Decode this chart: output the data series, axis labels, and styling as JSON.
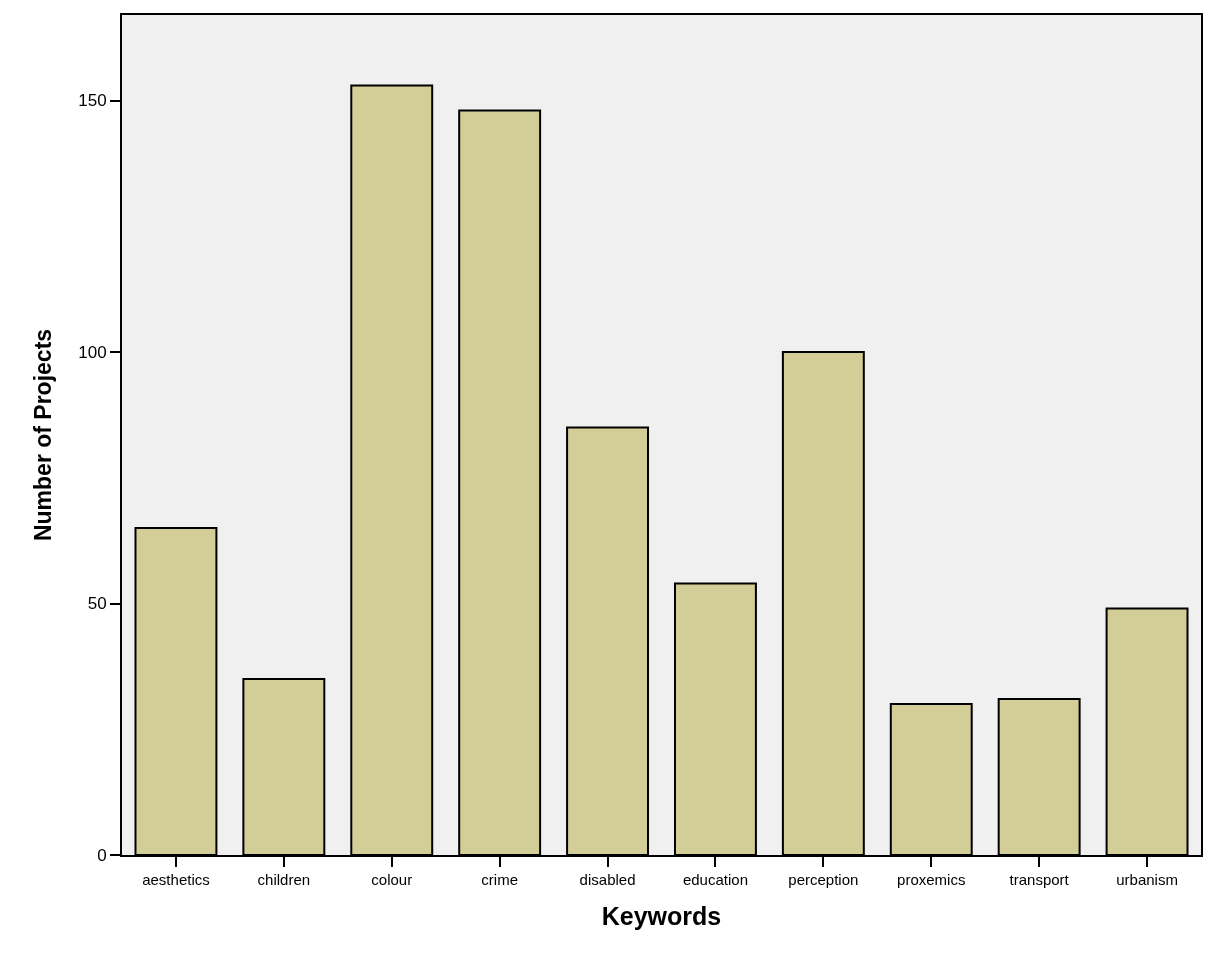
{
  "chart_data": {
    "type": "bar",
    "xlabel": "Keywords",
    "ylabel": "Number of Projects",
    "categories": [
      "aesthetics",
      "children",
      "colour",
      "crime",
      "disabled",
      "education",
      "perception",
      "proxemics",
      "transport",
      "urbanism"
    ],
    "values": [
      65,
      35,
      153,
      148,
      85,
      54,
      100,
      30,
      31,
      49
    ],
    "color": "#d3ce97",
    "ylim": [
      0,
      167
    ],
    "yticks": [
      0,
      50,
      100,
      150
    ],
    "grid": false,
    "legend": false
  }
}
